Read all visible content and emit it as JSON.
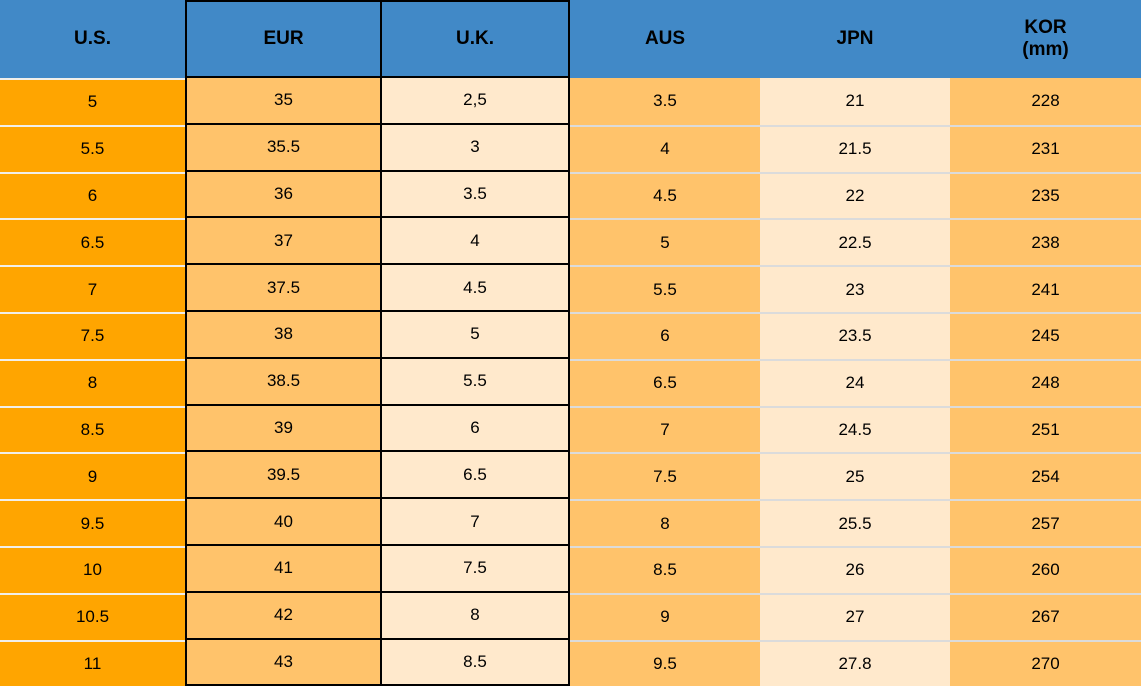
{
  "chart_data": {
    "type": "table",
    "columns": [
      {
        "label": "U.S."
      },
      {
        "label": "EUR"
      },
      {
        "label": "U.K."
      },
      {
        "label": "AUS"
      },
      {
        "label": "JPN"
      },
      {
        "label": "KOR",
        "sublabel": "(mm)"
      }
    ],
    "rows": [
      [
        "5",
        "35",
        "2,5",
        "3.5",
        "21",
        "228"
      ],
      [
        "5.5",
        "35.5",
        "3",
        "4",
        "21.5",
        "231"
      ],
      [
        "6",
        "36",
        "3.5",
        "4.5",
        "22",
        "235"
      ],
      [
        "6.5",
        "37",
        "4",
        "5",
        "22.5",
        "238"
      ],
      [
        "7",
        "37.5",
        "4.5",
        "5.5",
        "23",
        "241"
      ],
      [
        "7.5",
        "38",
        "5",
        "6",
        "23.5",
        "245"
      ],
      [
        "8",
        "38.5",
        "5.5",
        "6.5",
        "24",
        "248"
      ],
      [
        "8.5",
        "39",
        "6",
        "7",
        "24.5",
        "251"
      ],
      [
        "9",
        "39.5",
        "6.5",
        "7.5",
        "25",
        "254"
      ],
      [
        "9.5",
        "40",
        "7",
        "8",
        "25.5",
        "257"
      ],
      [
        "10",
        "41",
        "7.5",
        "8.5",
        "26",
        "260"
      ],
      [
        "10.5",
        "42",
        "8",
        "9",
        "27",
        "267"
      ],
      [
        "11",
        "43",
        "8.5",
        "9.5",
        "27.8",
        "270"
      ]
    ]
  },
  "colors": {
    "header_bg": "#4189C7",
    "us_col_bg": "#FFA500",
    "light_orange_bg": "#FFC36B",
    "peach_bg": "#FFE9CC",
    "border_black": "#000000",
    "separator_light": "#DBDBDB",
    "separator_white": "#F1EFEA",
    "text": "#000000"
  }
}
